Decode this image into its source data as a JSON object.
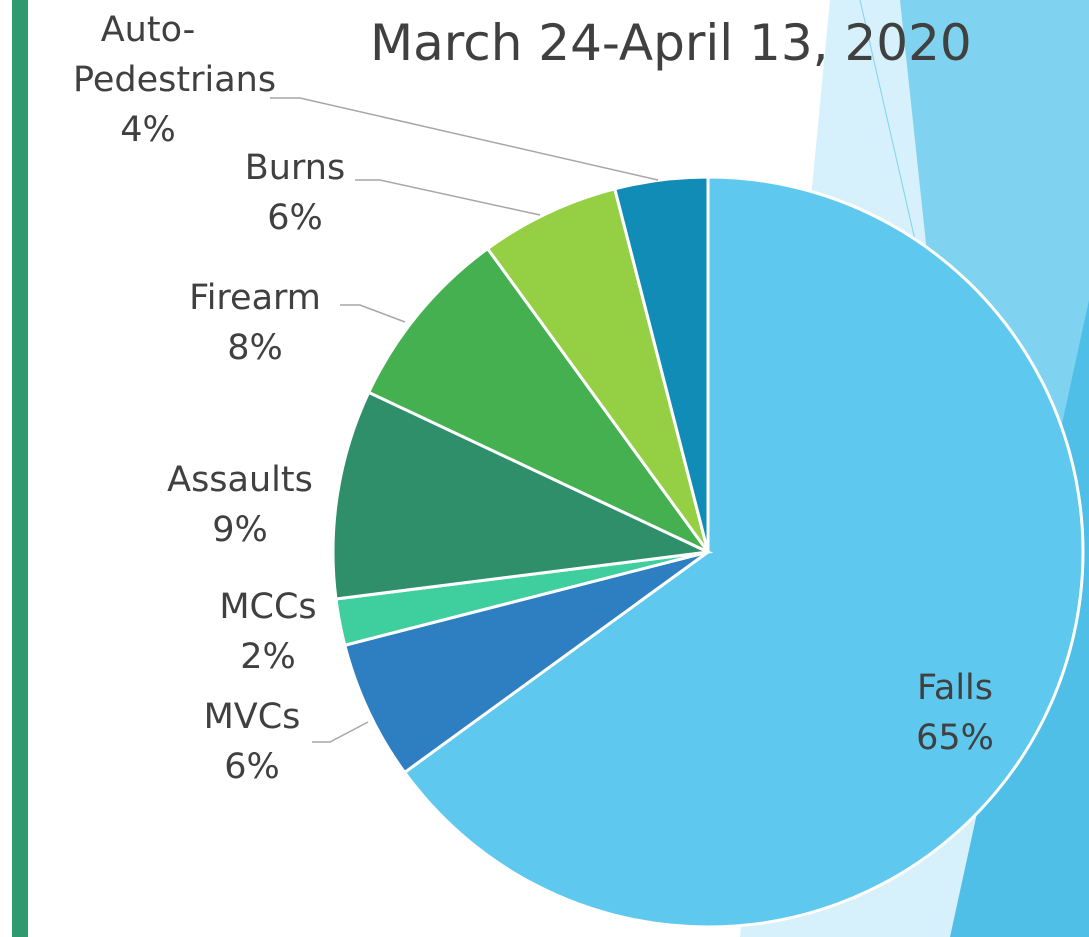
{
  "chart_data": {
    "type": "pie",
    "title": "March 24-April 13, 2020",
    "categories": [
      "Falls",
      "MVCs",
      "MCCs",
      "Assaults",
      "Firearm",
      "Burns",
      "Auto-Pedestrians"
    ],
    "values": [
      65,
      6,
      2,
      9,
      8,
      6,
      4
    ],
    "value_labels": [
      "65%",
      "6%",
      "2%",
      "9%",
      "8%",
      "6%",
      "4%"
    ],
    "colors": [
      "#5ec8ee",
      "#2e7fc2",
      "#3fcf9e",
      "#2e8f6a",
      "#45b050",
      "#95d044",
      "#118cb7"
    ]
  }
}
